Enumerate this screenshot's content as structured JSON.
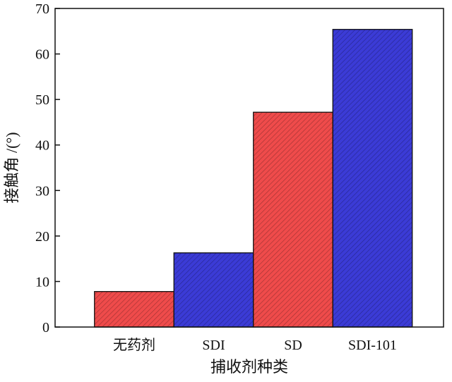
{
  "chart_data": {
    "type": "bar",
    "categories": [
      "无药剂",
      "SDI",
      "SD",
      "SDI-101"
    ],
    "values": [
      7.8,
      16.3,
      47.2,
      65.4
    ],
    "bar_colors": [
      "#ef4b4b",
      "#3b3bd6",
      "#ef4b4b",
      "#3b3bd6"
    ],
    "bar_pattern": "diagonal-hatch",
    "title": "",
    "xlabel": "捕收剂种类",
    "ylabel": "接触角  /(°)",
    "ylim": [
      0,
      70
    ],
    "yticks": [
      0,
      10,
      20,
      30,
      40,
      50,
      60,
      70
    ],
    "grid": false,
    "legend": "none"
  }
}
